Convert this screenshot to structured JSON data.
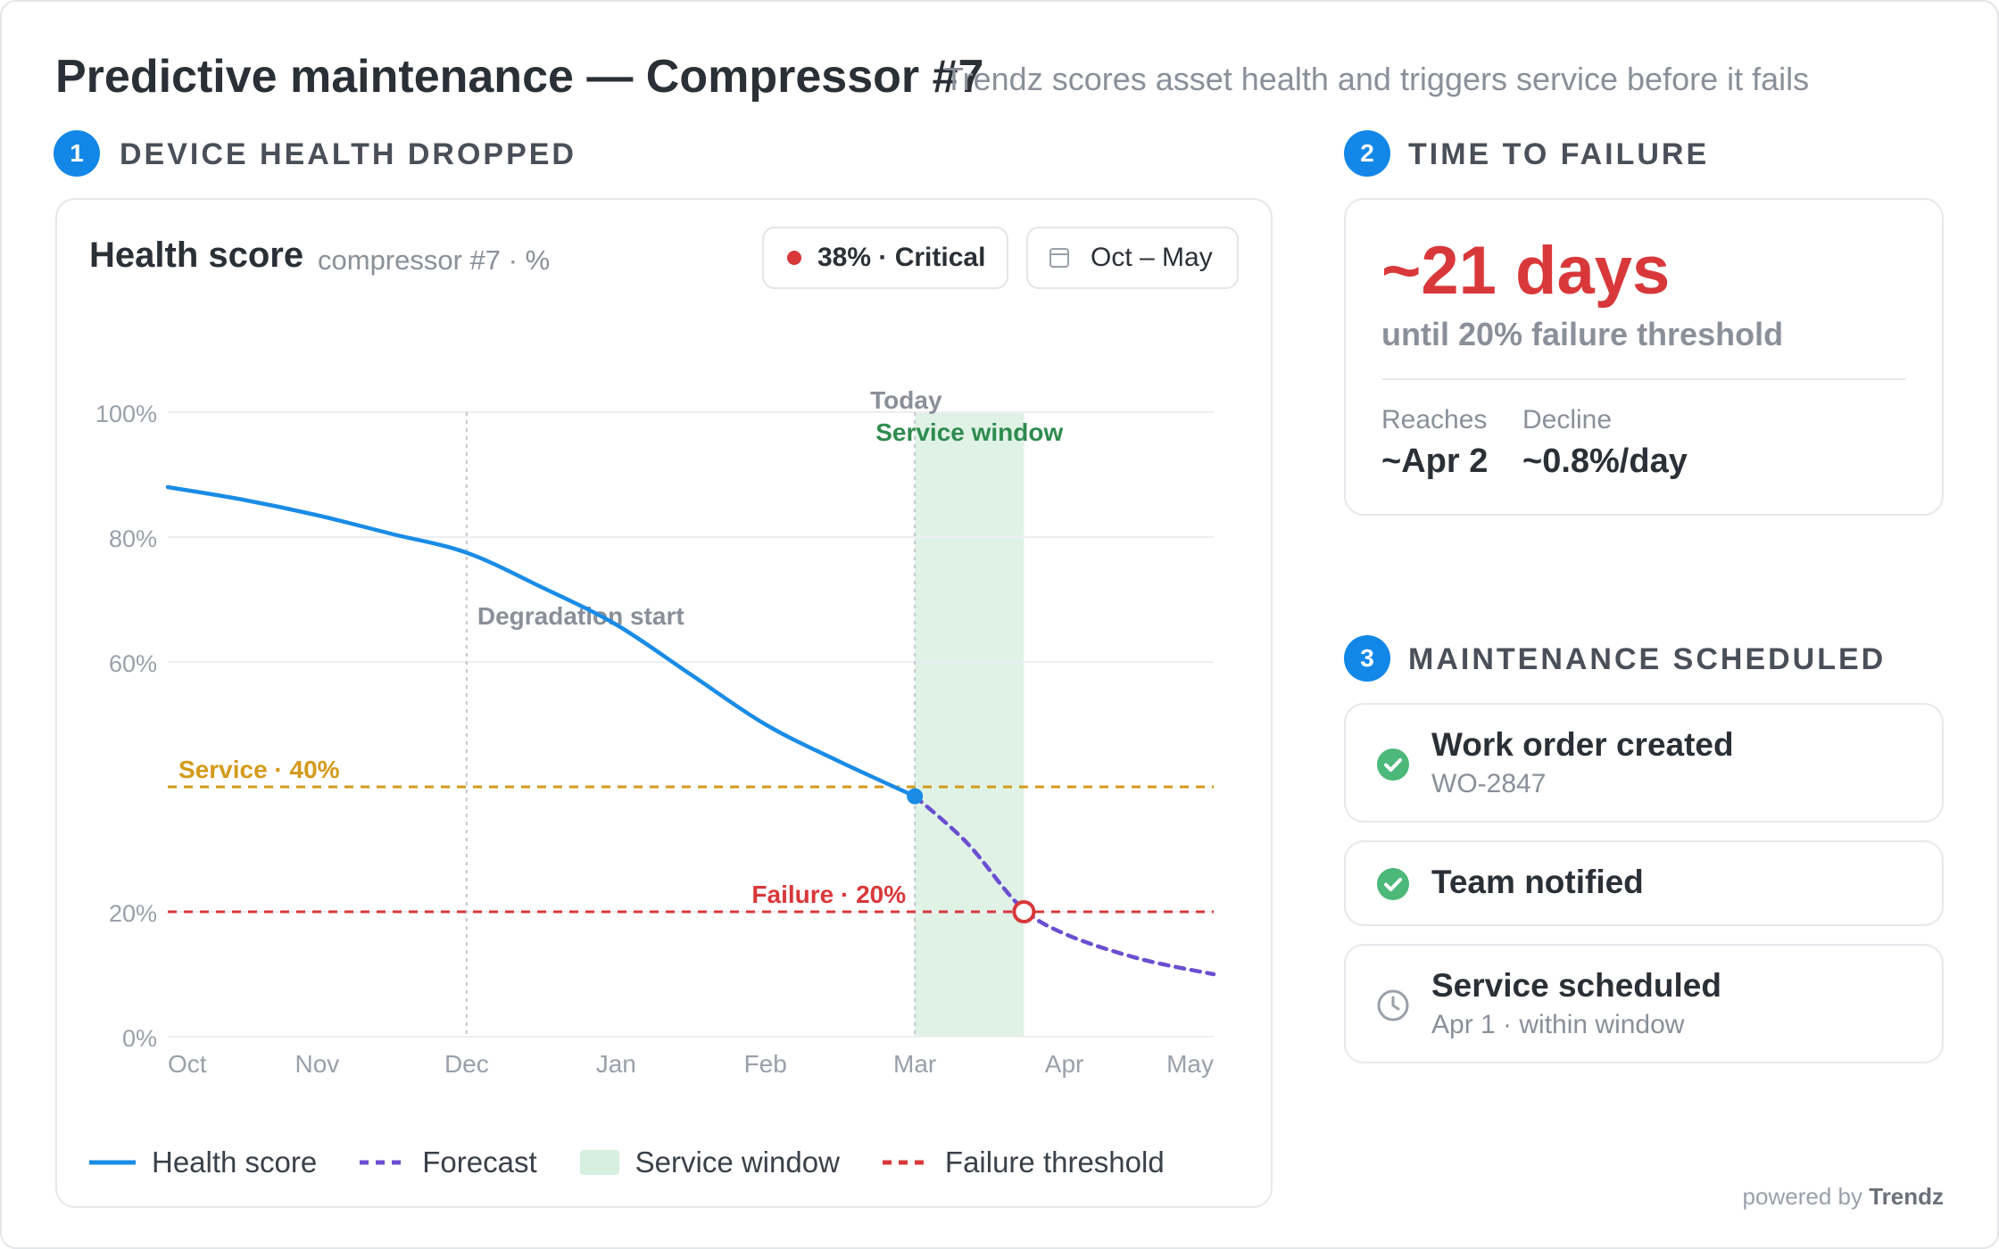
{
  "header": {
    "title": "Predictive maintenance — Compressor #7",
    "subtitle": "Trendz scores asset health and triggers service before it fails"
  },
  "steps": [
    {
      "number": "1",
      "label": "DEVICE HEALTH DROPPED"
    },
    {
      "number": "2",
      "label": "TIME TO FAILURE"
    },
    {
      "number": "3",
      "label": "MAINTENANCE SCHEDULED"
    }
  ],
  "chart_card": {
    "title": "Health score",
    "subtitle": "compressor #7 · %",
    "status_pill": "38% · Critical",
    "range_pill": "Oct – May"
  },
  "chart_data": {
    "type": "line",
    "ylabel": "",
    "xlabel": "",
    "ylim": [
      0,
      100
    ],
    "y_ticks": [
      "100%",
      "80%",
      "60%",
      "20%",
      "0%"
    ],
    "y_tick_values": [
      100,
      80,
      60,
      20,
      0
    ],
    "x_ticks": [
      "Oct",
      "Nov",
      "Dec",
      "Jan",
      "Feb",
      "Mar",
      "Apr",
      "May"
    ],
    "series": [
      {
        "name": "Health score",
        "color": "#1a8ce6",
        "style": "solid",
        "points": [
          [
            0,
            88
          ],
          [
            0.5,
            86
          ],
          [
            1,
            83.5
          ],
          [
            1.5,
            80.5
          ],
          [
            2,
            77.5
          ],
          [
            2.5,
            72
          ],
          [
            3,
            66
          ],
          [
            3.5,
            58
          ],
          [
            4,
            50
          ],
          [
            4.5,
            44
          ],
          [
            5,
            38.5
          ]
        ]
      },
      {
        "name": "Forecast",
        "color": "#6b4fd0",
        "style": "dashed",
        "points": [
          [
            5,
            38.5
          ],
          [
            5.35,
            31
          ],
          [
            5.7,
            21
          ],
          [
            6,
            16.5
          ],
          [
            6.5,
            12.5
          ],
          [
            7,
            10
          ]
        ]
      }
    ],
    "thresholds": [
      {
        "label": "Service · 40%",
        "value": 40,
        "color": "#d49a1a"
      },
      {
        "label": "Failure · 20%",
        "value": 20,
        "color": "#d9383a"
      }
    ],
    "service_window": {
      "label": "Service window",
      "from": 5,
      "to": 5.73,
      "color": "#e0f2e6"
    },
    "markers": [
      {
        "label": "Degradation start",
        "x": 2
      },
      {
        "label": "Today",
        "x": 5
      }
    ],
    "current_point": {
      "x": 5,
      "y": 38.5
    },
    "failure_point": {
      "x": 5.73,
      "y": 20
    },
    "grid": true,
    "legend_position": "bottom"
  },
  "legend": {
    "items": [
      "Health score",
      "Forecast",
      "Service window",
      "Failure threshold"
    ]
  },
  "time_to_failure": {
    "days": "~21 days",
    "subtitle": "until 20% failure threshold",
    "reaches_label": "Reaches",
    "reaches_value": "~Apr 2",
    "decline_label": "Decline",
    "decline_value": "~0.8%/day"
  },
  "tasks": [
    {
      "title": "Work order created",
      "sub": "WO-2847",
      "icon": "check-circle-icon"
    },
    {
      "title": "Team notified",
      "sub": "",
      "icon": "check-circle-icon"
    },
    {
      "title": "Service scheduled",
      "sub": "Apr 1 · within window",
      "icon": "clock-icon"
    }
  ],
  "footer": {
    "powered_prefix": "powered by",
    "brand": "Trendz"
  },
  "colors": {
    "accent": "#1287e8",
    "critical": "#d9383a",
    "warning": "#d49a1a",
    "success": "#4cb879",
    "forecast": "#6b4fd0"
  }
}
